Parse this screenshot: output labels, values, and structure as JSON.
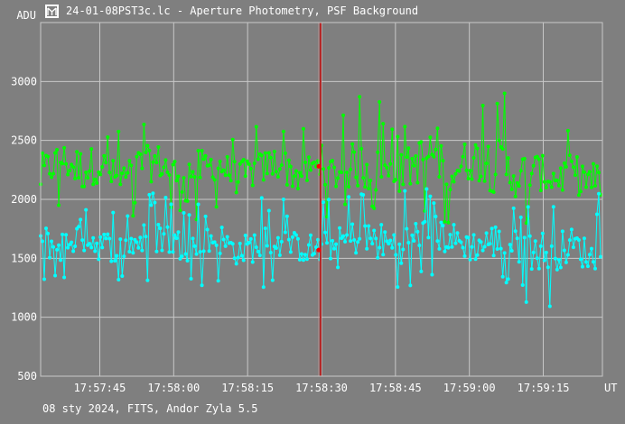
{
  "window": {
    "title": "24-01-08PST3c.lc - Aperture Photometry, PSF Background",
    "footer": "08 sty 2024, FITS, Andor Zyla 5.5",
    "icon": "app-icon"
  },
  "colors": {
    "background": "#7f7f7f",
    "grid": "#c8c8c8",
    "series_green": "#00ff00",
    "series_cyan": "#00ffff",
    "cursor": "#b22222",
    "cursor_marker": "#ff0000"
  },
  "chart_data": {
    "type": "scatter",
    "title": "",
    "ylabel": "ADU",
    "xlabel": "UT",
    "x_unit": "time (hh:mm:ss)",
    "xlim": [
      "17:57:33",
      "17:59:27"
    ],
    "ylim": [
      500,
      3500
    ],
    "y_ticks": [
      500,
      1000,
      1500,
      2000,
      2500,
      3000
    ],
    "x_ticks": [
      "17:57:45",
      "17:58:00",
      "17:58:15",
      "17:58:30",
      "17:58:45",
      "17:59:00",
      "17:59:15"
    ],
    "grid": true,
    "cursor_x": "17:58:29.8",
    "cursor_values": [
      2280,
      1570
    ],
    "series": [
      {
        "color": "#00ff00",
        "style": "points connected by vertical lines",
        "x": [
          "17:57:33",
          "17:57:37",
          "17:57:41",
          "17:57:45",
          "17:57:49",
          "17:57:53",
          "17:57:57",
          "17:58:01",
          "17:58:05",
          "17:58:09",
          "17:58:13",
          "17:58:17",
          "17:58:21",
          "17:58:25",
          "17:58:29",
          "17:58:33",
          "17:58:37",
          "17:58:41",
          "17:58:45",
          "17:58:49",
          "17:58:53",
          "17:58:57",
          "17:59:01",
          "17:59:05",
          "17:59:09",
          "17:59:13",
          "17:59:17",
          "17:59:21",
          "17:59:25"
        ],
        "values": [
          2200,
          2350,
          2250,
          2300,
          2150,
          2280,
          2320,
          2200,
          2260,
          2300,
          2180,
          2250,
          2320,
          2200,
          2280,
          2220,
          2300,
          2240,
          2190,
          2310,
          2400,
          2260,
          2350,
          2300,
          2200,
          2250,
          2180,
          2220,
          2150
        ],
        "highs": [
          2850,
          2600,
          3010,
          2550,
          2650,
          2800,
          2650,
          2750,
          2700,
          2600,
          2600,
          2680,
          2700,
          2650,
          2500,
          2720,
          2900,
          2950,
          2720,
          2850,
          3200,
          2900,
          2800,
          3150,
          2800,
          2700,
          2650,
          2750,
          2650
        ],
        "lows": [
          1800,
          1850,
          1900,
          1700,
          1850,
          1850,
          1800,
          1900,
          1800,
          1850,
          1800,
          1900,
          1850,
          1800,
          1850,
          1850,
          1750,
          1800,
          1750,
          1800,
          1800,
          1750,
          1800,
          1700,
          1700,
          1800,
          1800,
          1800,
          1700
        ]
      },
      {
        "color": "#00ffff",
        "style": "points connected by vertical lines",
        "x": [
          "17:57:33",
          "17:57:37",
          "17:57:41",
          "17:57:45",
          "17:57:49",
          "17:57:53",
          "17:57:57",
          "17:58:01",
          "17:58:05",
          "17:58:09",
          "17:58:13",
          "17:58:17",
          "17:58:21",
          "17:58:25",
          "17:58:29",
          "17:58:33",
          "17:58:37",
          "17:58:41",
          "17:58:45",
          "17:58:49",
          "17:58:53",
          "17:58:57",
          "17:59:01",
          "17:59:05",
          "17:59:09",
          "17:59:13",
          "17:59:17",
          "17:59:21",
          "17:59:25"
        ],
        "values": [
          1650,
          1600,
          1700,
          1620,
          1580,
          1650,
          1700,
          1620,
          1600,
          1680,
          1550,
          1620,
          1650,
          1600,
          1570,
          1620,
          1680,
          1650,
          1600,
          1680,
          1720,
          1650,
          1600,
          1650,
          1600,
          1580,
          1550,
          1620,
          1500
        ],
        "highs": [
          2100,
          2050,
          2050,
          2000,
          1950,
          2000,
          2100,
          2050,
          2000,
          2000,
          1950,
          2050,
          2050,
          1950,
          2000,
          2050,
          2100,
          2150,
          2100,
          2100,
          2100,
          2100,
          2050,
          2100,
          2000,
          2000,
          1950,
          2000,
          2100
        ],
        "lows": [
          1270,
          1300,
          1250,
          1200,
          1300,
          1250,
          1200,
          1300,
          1250,
          1200,
          1300,
          1200,
          1250,
          1280,
          1200,
          1300,
          1250,
          1200,
          1130,
          1200,
          1250,
          1250,
          1300,
          1250,
          1200,
          980,
          1000,
          1180,
          1300
        ]
      }
    ]
  }
}
